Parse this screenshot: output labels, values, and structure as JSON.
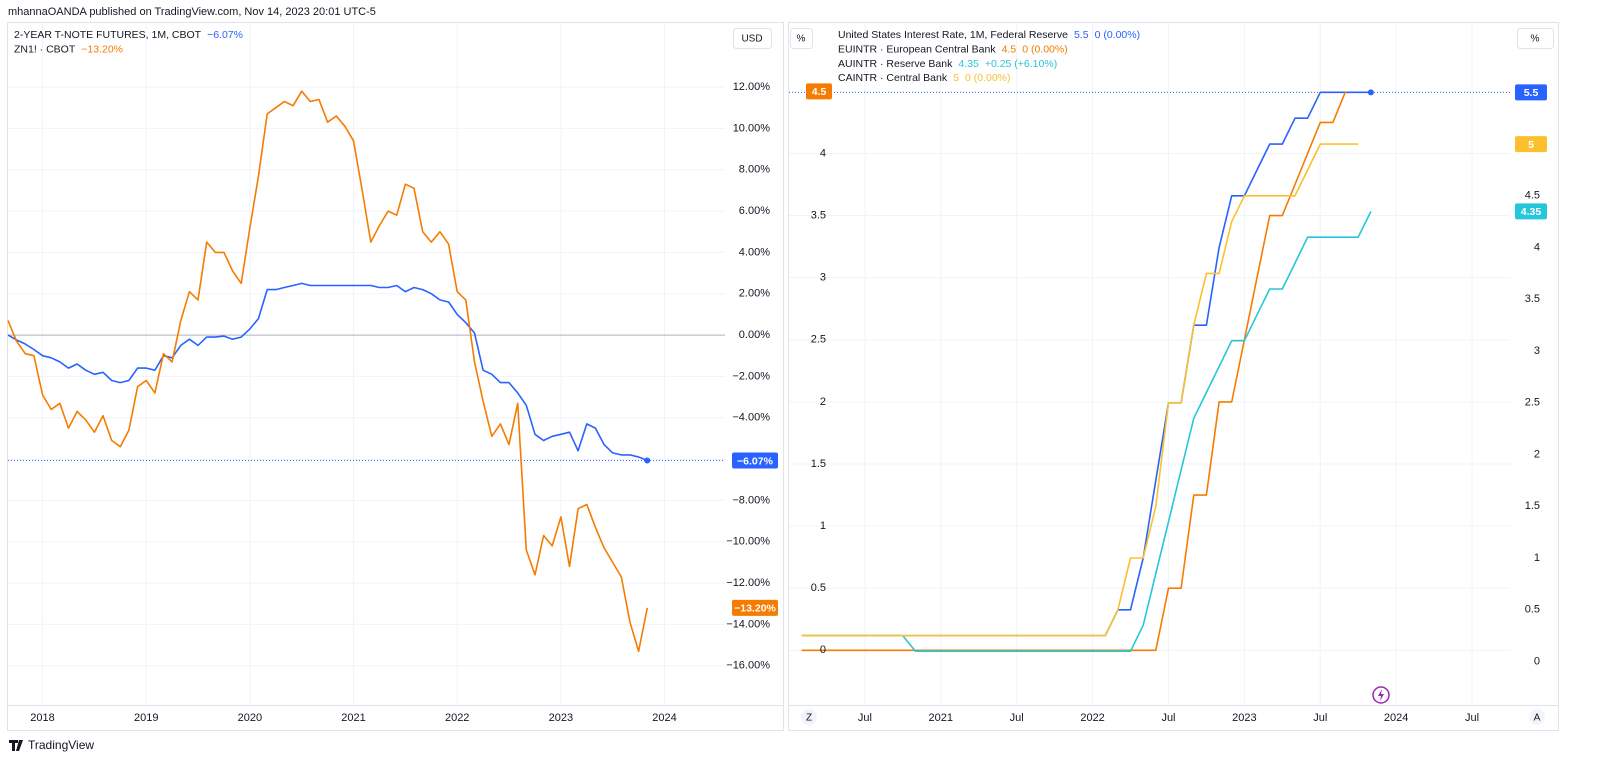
{
  "header": {
    "publisher": "mhannaOANDA published on TradingView.com, Nov 14, 2023 20:01 UTC-5"
  },
  "footer": {
    "brand": "TradingView"
  },
  "ui": {
    "currency": "USD",
    "scale_left": "%",
    "scale_right": "%",
    "zoom_button": "Z",
    "auto_button": "A"
  },
  "chart_data": [
    {
      "type": "line",
      "y_axis_side": "right",
      "grid": true,
      "zero_line": true,
      "x": [
        "2017-09",
        "2017-10",
        "2017-11",
        "2017-12",
        "2018-01",
        "2018-02",
        "2018-03",
        "2018-04",
        "2018-05",
        "2018-06",
        "2018-07",
        "2018-08",
        "2018-09",
        "2018-10",
        "2018-11",
        "2018-12",
        "2019-01",
        "2019-02",
        "2019-03",
        "2019-04",
        "2019-05",
        "2019-06",
        "2019-07",
        "2019-08",
        "2019-09",
        "2019-10",
        "2019-11",
        "2019-12",
        "2020-01",
        "2020-02",
        "2020-03",
        "2020-04",
        "2020-05",
        "2020-06",
        "2020-07",
        "2020-08",
        "2020-09",
        "2020-10",
        "2020-11",
        "2020-12",
        "2021-01",
        "2021-02",
        "2021-03",
        "2021-04",
        "2021-05",
        "2021-06",
        "2021-07",
        "2021-08",
        "2021-09",
        "2021-10",
        "2021-11",
        "2021-12",
        "2022-01",
        "2022-02",
        "2022-03",
        "2022-04",
        "2022-05",
        "2022-06",
        "2022-07",
        "2022-08",
        "2022-09",
        "2022-10",
        "2022-11",
        "2022-12",
        "2023-01",
        "2023-02",
        "2023-03",
        "2023-04",
        "2023-05",
        "2023-06",
        "2023-07",
        "2023-08",
        "2023-09",
        "2023-10",
        "2023-11"
      ],
      "xlim": [
        "2017-09",
        "2024-08"
      ],
      "xticks": [
        {
          "value": "2018-01",
          "label": "2018"
        },
        {
          "value": "2019-01",
          "label": "2019"
        },
        {
          "value": "2020-01",
          "label": "2020"
        },
        {
          "value": "2021-01",
          "label": "2021"
        },
        {
          "value": "2022-01",
          "label": "2022"
        },
        {
          "value": "2023-01",
          "label": "2023"
        },
        {
          "value": "2024-01",
          "label": "2024"
        }
      ],
      "ylim": [
        -17.9,
        15.1
      ],
      "yticks": [
        {
          "value": 12,
          "label": "12.00%"
        },
        {
          "value": 10,
          "label": "10.00%"
        },
        {
          "value": 8,
          "label": "8.00%"
        },
        {
          "value": 6,
          "label": "6.00%"
        },
        {
          "value": 4,
          "label": "4.00%"
        },
        {
          "value": 2,
          "label": "2.00%"
        },
        {
          "value": 0,
          "label": "0.00%"
        },
        {
          "value": -2,
          "label": "−2.00%"
        },
        {
          "value": -4,
          "label": "−4.00%"
        },
        {
          "value": -6,
          "label": "−6.00%"
        },
        {
          "value": -8,
          "label": "−8.00%"
        },
        {
          "value": -10,
          "label": "−10.00%"
        },
        {
          "value": -12,
          "label": "−12.00%"
        },
        {
          "value": -14,
          "label": "−14.00%"
        },
        {
          "value": -16,
          "label": "−16.00%"
        }
      ],
      "series": [
        {
          "name": "2-YEAR T-NOTE FUTURES, 1M, CBOT",
          "color": "#2962ff",
          "price_line": true,
          "last_label": "−6.07%",
          "values": [
            0,
            -0.24,
            -0.43,
            -0.7,
            -1.0,
            -1.1,
            -1.3,
            -1.6,
            -1.4,
            -1.7,
            -1.9,
            -1.8,
            -2.2,
            -2.3,
            -2.2,
            -1.6,
            -1.6,
            -1.7,
            -1.0,
            -1.1,
            -0.5,
            -0.2,
            -0.5,
            -0.1,
            -0.1,
            -0.05,
            -0.2,
            -0.1,
            0.3,
            0.8,
            2.2,
            2.2,
            2.3,
            2.4,
            2.5,
            2.4,
            2.4,
            2.4,
            2.4,
            2.4,
            2.4,
            2.4,
            2.4,
            2.3,
            2.3,
            2.4,
            2.1,
            2.3,
            2.2,
            2.0,
            1.7,
            1.6,
            1.0,
            0.6,
            0.1,
            -1.7,
            -1.9,
            -2.3,
            -2.3,
            -2.8,
            -3.4,
            -4.8,
            -5.1,
            -4.9,
            -4.8,
            -4.7,
            -5.6,
            -4.3,
            -4.5,
            -5.3,
            -5.7,
            -5.8,
            -5.8,
            -5.9,
            -6.07
          ]
        },
        {
          "name": "ZN1! · CBOT",
          "color": "#f57c00",
          "last_label": "−13.20%",
          "values": [
            0.7,
            -0.3,
            -0.9,
            -1.0,
            -2.9,
            -3.6,
            -3.3,
            -4.5,
            -3.7,
            -4.1,
            -4.7,
            -3.9,
            -5.1,
            -5.4,
            -4.6,
            -2.5,
            -2.2,
            -2.8,
            -0.9,
            -1.3,
            0.7,
            2.1,
            1.7,
            4.5,
            4.0,
            4.0,
            3.1,
            2.5,
            5.2,
            7.7,
            10.7,
            11.0,
            11.3,
            11.1,
            11.8,
            11.3,
            11.4,
            10.3,
            10.6,
            10.1,
            9.4,
            7.0,
            4.5,
            5.3,
            6.0,
            5.8,
            7.3,
            7.1,
            5.0,
            4.5,
            5.0,
            4.4,
            2.1,
            1.7,
            -1.3,
            -3.2,
            -4.9,
            -4.3,
            -5.3,
            -3.3,
            -10.4,
            -11.6,
            -9.7,
            -10.2,
            -8.8,
            -11.2,
            -8.4,
            -8.2,
            -9.3,
            -10.3,
            -11.0,
            -11.7,
            -13.9,
            -15.3,
            -13.2
          ]
        }
      ]
    },
    {
      "type": "line",
      "y_axis_side": "left",
      "grid": true,
      "x": [
        "2020-02",
        "2020-03",
        "2020-04",
        "2020-05",
        "2020-06",
        "2020-07",
        "2020-08",
        "2020-09",
        "2020-10",
        "2020-11",
        "2020-12",
        "2021-01",
        "2021-02",
        "2021-03",
        "2021-04",
        "2021-05",
        "2021-06",
        "2021-07",
        "2021-08",
        "2021-09",
        "2021-10",
        "2021-11",
        "2021-12",
        "2022-01",
        "2022-02",
        "2022-03",
        "2022-04",
        "2022-05",
        "2022-06",
        "2022-07",
        "2022-08",
        "2022-09",
        "2022-10",
        "2022-11",
        "2022-12",
        "2023-01",
        "2023-02",
        "2023-03",
        "2023-04",
        "2023-05",
        "2023-06",
        "2023-07",
        "2023-08",
        "2023-09",
        "2023-10",
        "2023-11"
      ],
      "xlim": [
        "2020-01",
        "2024-10"
      ],
      "xticks": [
        {
          "value": "2020-07",
          "label": "Jul"
        },
        {
          "value": "2021-01",
          "label": "2021"
        },
        {
          "value": "2021-07",
          "label": "Jul"
        },
        {
          "value": "2022-01",
          "label": "2022"
        },
        {
          "value": "2022-07",
          "label": "Jul"
        },
        {
          "value": "2023-01",
          "label": "2023"
        },
        {
          "value": "2023-07",
          "label": "Jul"
        },
        {
          "value": "2024-01",
          "label": "2024"
        },
        {
          "value": "2024-07",
          "label": "Jul"
        }
      ],
      "ylim": [
        -0.44,
        5.05
      ],
      "yticks": [
        0,
        0.5,
        1,
        1.5,
        2,
        2.5,
        3,
        3.5,
        4
      ],
      "y2lim": [
        -0.42,
        6.17
      ],
      "y2ticks": [
        0,
        0.5,
        1,
        1.5,
        2,
        2.5,
        3,
        3.5,
        4,
        4.5,
        5
      ],
      "series": [
        {
          "name": "United States Interest Rate, 1M, Federal Reserve",
          "color": "#2962ff",
          "axis": "y2",
          "price_line": true,
          "change": "0 (0.00%)",
          "values": [
            0.25,
            0.25,
            0.25,
            0.25,
            0.25,
            0.25,
            0.25,
            0.25,
            0.25,
            0.25,
            0.25,
            0.25,
            0.25,
            0.25,
            0.25,
            0.25,
            0.25,
            0.25,
            0.25,
            0.25,
            0.25,
            0.25,
            0.25,
            0.25,
            0.25,
            0.5,
            0.5,
            1.0,
            1.75,
            2.5,
            2.5,
            3.25,
            3.25,
            4.0,
            4.5,
            4.5,
            4.75,
            5.0,
            5.0,
            5.25,
            5.25,
            5.5,
            5.5,
            5.5,
            5.5,
            5.5
          ]
        },
        {
          "name": "EUINTR · European Central Bank",
          "color": "#f57c00",
          "axis": "y",
          "change": "0 (0.00%)",
          "values": [
            0,
            0,
            0,
            0,
            0,
            0,
            0,
            0,
            0,
            0,
            0,
            0,
            0,
            0,
            0,
            0,
            0,
            0,
            0,
            0,
            0,
            0,
            0,
            0,
            0,
            0,
            0,
            0,
            0,
            0.5,
            0.5,
            1.25,
            1.25,
            2.0,
            2.0,
            2.5,
            3.0,
            3.5,
            3.5,
            3.75,
            4.0,
            4.25,
            4.25,
            4.5,
            null,
            null
          ]
        },
        {
          "name": "AUINTR · Reserve Bank",
          "color": "#26c6da",
          "axis": "y2",
          "change": "+0.25 (+6.10%)",
          "values": [
            0.25,
            0.25,
            0.25,
            0.25,
            0.25,
            0.25,
            0.25,
            0.25,
            0.25,
            0.1,
            0.1,
            0.1,
            0.1,
            0.1,
            0.1,
            0.1,
            0.1,
            0.1,
            0.1,
            0.1,
            0.1,
            0.1,
            0.1,
            0.1,
            0.1,
            0.1,
            0.1,
            0.35,
            0.85,
            1.35,
            1.85,
            2.35,
            2.6,
            2.85,
            3.1,
            3.1,
            3.35,
            3.6,
            3.6,
            3.85,
            4.1,
            4.1,
            4.1,
            4.1,
            4.1,
            4.35
          ]
        },
        {
          "name": "CAINTR · Central Bank",
          "color": "#fbc02d",
          "axis": "y2",
          "change": "0 (0.00%)",
          "values": [
            0.25,
            0.25,
            0.25,
            0.25,
            0.25,
            0.25,
            0.25,
            0.25,
            0.25,
            0.25,
            0.25,
            0.25,
            0.25,
            0.25,
            0.25,
            0.25,
            0.25,
            0.25,
            0.25,
            0.25,
            0.25,
            0.25,
            0.25,
            0.25,
            0.25,
            0.5,
            1.0,
            1.0,
            1.5,
            2.5,
            2.5,
            3.25,
            3.75,
            3.75,
            4.25,
            4.5,
            4.5,
            4.5,
            4.5,
            4.5,
            4.75,
            5.0,
            5.0,
            5.0,
            5.0,
            null
          ]
        }
      ]
    }
  ]
}
